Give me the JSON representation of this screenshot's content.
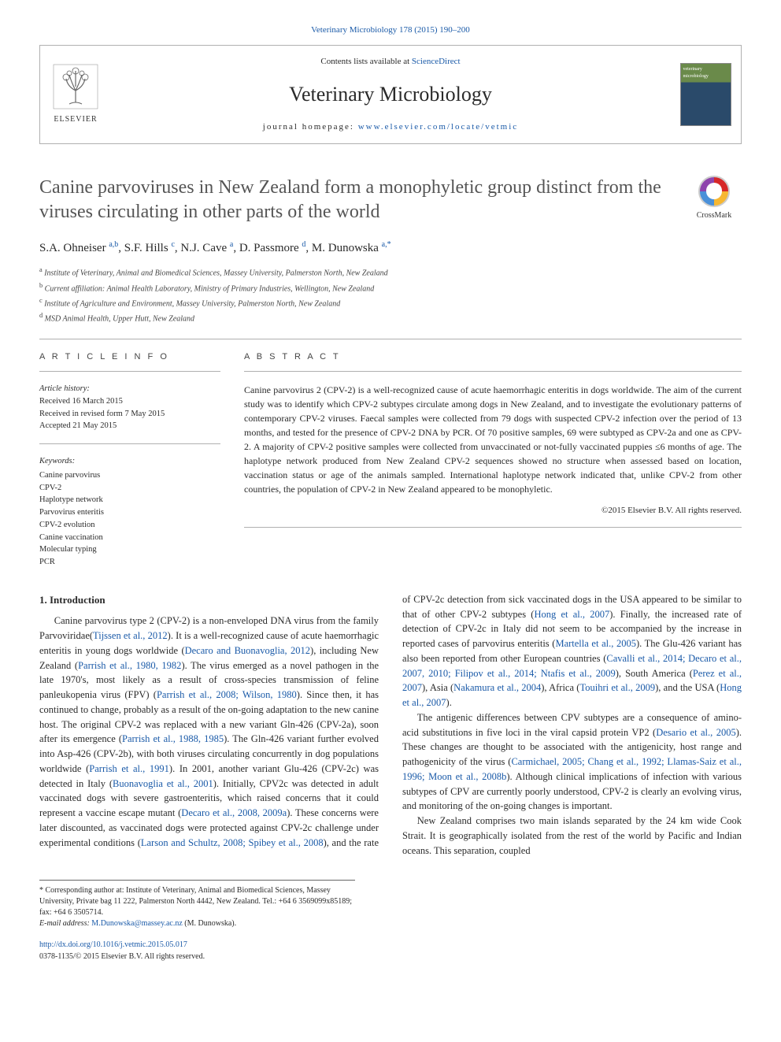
{
  "journal_ref": {
    "text": "Veterinary Microbiology 178 (2015) 190–200"
  },
  "header": {
    "publisher_name": "ELSEVIER",
    "contents_prefix": "Contents lists available at ",
    "contents_link": "ScienceDirect",
    "journal_name": "Veterinary Microbiology",
    "homepage_label": "journal homepage: ",
    "homepage_url": "www.elsevier.com/locate/vetmic",
    "cover_text": "veterinary microbiology"
  },
  "crossmark_label": "CrossMark",
  "title": "Canine parvoviruses in New Zealand form a monophyletic group distinct from the viruses circulating in other parts of the world",
  "authors_html": "S.A. Ohneiser <sup>a,b</sup>, S.F. Hills <sup>c</sup>, N.J. Cave <sup>a</sup>, D. Passmore <sup>d</sup>, M. Dunowska <sup>a,*</sup>",
  "affiliations": [
    {
      "sup": "a",
      "text": "Institute of Veterinary, Animal and Biomedical Sciences, Massey University, Palmerston North, New Zealand"
    },
    {
      "sup": "b",
      "text": "Current affiliation: Animal Health Laboratory, Ministry of Primary Industries, Wellington, New Zealand"
    },
    {
      "sup": "c",
      "text": "Institute of Agriculture and Environment, Massey University, Palmerston North, New Zealand"
    },
    {
      "sup": "d",
      "text": "MSD Animal Health, Upper Hutt, New Zealand"
    }
  ],
  "article_info": {
    "heading": "A R T I C L E  I N F O",
    "history_label": "Article history:",
    "received": "Received 16 March 2015",
    "revised": "Received in revised form 7 May 2015",
    "accepted": "Accepted 21 May 2015",
    "keywords_label": "Keywords:",
    "keywords": [
      "Canine parvovirus",
      "CPV-2",
      "Haplotype network",
      "Parvovirus enteritis",
      "CPV-2 evolution",
      "Canine vaccination",
      "Molecular typing",
      "PCR"
    ]
  },
  "abstract": {
    "heading": "A B S T R A C T",
    "text": "Canine parvovirus 2 (CPV-2) is a well-recognized cause of acute haemorrhagic enteritis in dogs worldwide. The aim of the current study was to identify which CPV-2 subtypes circulate among dogs in New Zealand, and to investigate the evolutionary patterns of contemporary CPV-2 viruses. Faecal samples were collected from 79 dogs with suspected CPV-2 infection over the period of 13 months, and tested for the presence of CPV-2 DNA by PCR. Of 70 positive samples, 69 were subtyped as CPV-2a and one as CPV-2. A majority of CPV-2 positive samples were collected from unvaccinated or not-fully vaccinated puppies ≤6 months of age. The haplotype network produced from New Zealand CPV-2 sequences showed no structure when assessed based on location, vaccination status or age of the animals sampled. International haplotype network indicated that, unlike CPV-2 from other countries, the population of CPV-2 in New Zealand appeared to be monophyletic.",
    "copyright": "©2015 Elsevier B.V. All rights reserved."
  },
  "intro": {
    "heading": "1. Introduction",
    "p1_pre": "Canine parvovirus type 2 (CPV-2) is a non-enveloped DNA virus from the family Parvoviridae(",
    "p1_l1": "Tijssen et al., 2012",
    "p1_seg2": "). It is a well-recognized cause of acute haemorrhagic enteritis in young dogs worldwide (",
    "p1_l2": "Decaro and Buonavoglia, 2012",
    "p1_seg3": "), including New Zealand (",
    "p1_l3": "Parrish et al., 1980, 1982",
    "p1_seg4": "). The virus emerged as a novel pathogen in the late 1970's, most likely as a result of cross-species transmission of feline panleukopenia virus (FPV) (",
    "p1_l4": "Parrish et al., 2008; Wilson, 1980",
    "p1_seg5": "). Since then, it has continued to change, probably as a result of the on-going adaptation to the new canine host. The original CPV-2 was replaced with a new variant Gln-426 (CPV-2a), soon after its emergence (",
    "p1_l5": "Parrish et al., 1988, 1985",
    "p1_seg6": "). The Gln-426 variant further evolved into Asp-426 (CPV-2b), with both viruses circulating concurrently in dog populations worldwide (",
    "p1_l6": "Parrish et al., 1991",
    "p1_seg7": "). In 2001, another variant Glu-426 (CPV-2c) was detected in Italy (",
    "p1_l7": "Buonavoglia et al., 2001",
    "p1_seg8": "). Initially, CPV2c was detected in adult vaccinated dogs with severe gastroenteritis, which raised concerns that it could represent a vaccine escape mutant (",
    "p1_l8": "Decaro et al., 2008, 2009a",
    "p1_seg9": "). These concerns were later discounted, as vaccinated dogs were protected against CPV-2c challenge under experimental conditions (",
    "p1_l9": "Larson and Schultz, 2008; Spibey et al., 2008",
    "p1_seg10": "), and the rate of CPV-2c detection from sick vaccinated dogs in the USA appeared to be similar to that of other CPV-2 subtypes (",
    "p1_l10": "Hong et al., 2007",
    "p1_seg11": "). Finally, the increased rate of detection of CPV-2c in Italy did not seem to be accompanied by the increase in reported cases of parvovirus enteritis (",
    "p1_l11": "Martella et al., 2005",
    "p1_seg12": "). The Glu-426 variant has also been reported from other European countries (",
    "p1_l12": "Cavalli et al., 2014; Decaro et al., 2007, 2010; Filipov et al., 2014; Ntafis et al., 2009",
    "p1_seg13": "), South America (",
    "p1_l13": "Perez et al., 2007",
    "p1_seg14": "), Asia (",
    "p1_l14": "Nakamura et al., 2004",
    "p1_seg15": "), Africa (",
    "p1_l15": "Touihri et al., 2009",
    "p1_seg16": "), and the USA (",
    "p1_l16": "Hong et al., 2007",
    "p1_seg17": ").",
    "p2_pre": "The antigenic differences between CPV subtypes are a consequence of amino-acid substitutions in five loci in the viral capsid protein VP2 (",
    "p2_l1": "Desario et al., 2005",
    "p2_seg2": "). These changes are thought to be associated with the antigenicity, host range and pathogenicity of the virus (",
    "p2_l2": "Carmichael, 2005; Chang et al., 1992; Llamas-Saiz et al., 1996; Moon et al., 2008b",
    "p2_seg3": "). Although clinical implications of infection with various subtypes of CPV are currently poorly understood, CPV-2 is clearly an evolving virus, and monitoring of the on-going changes is important.",
    "p3": "New Zealand comprises two main islands separated by the 24 km wide Cook Strait. It is geographically isolated from the rest of the world by Pacific and Indian oceans. This separation, coupled"
  },
  "footnote": {
    "corr": "* Corresponding author at: Institute of Veterinary, Animal and Biomedical Sciences, Massey University, Private bag 11 222, Palmerston North 4442, New Zealand. Tel.: +64 6 3569099x85189; fax: +64 6 3505714.",
    "email_label": "E-mail address: ",
    "email": "M.Dunowska@massey.ac.nz",
    "email_suffix": " (M. Dunowska)."
  },
  "footer": {
    "doi": "http://dx.doi.org/10.1016/j.vetmic.2015.05.017",
    "issn_line": "0378-1135/© 2015 Elsevier B.V. All rights reserved."
  }
}
